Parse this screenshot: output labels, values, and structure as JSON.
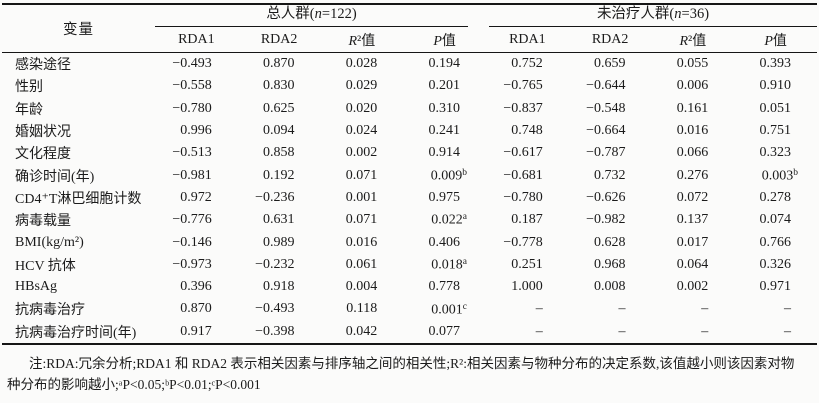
{
  "page": {
    "background": "#fbfbfa",
    "text_color": "#1b1b1b",
    "rule_color": "#161616"
  },
  "table": {
    "variable_header": "变量",
    "groups": [
      {
        "pre": "总人群(",
        "it": "n",
        "post": "=122)",
        "cols": [
          {
            "i": "",
            "t": "RDA1"
          },
          {
            "i": "",
            "t": "RDA2"
          },
          {
            "i": "R",
            "t": "²值"
          },
          {
            "i": "P",
            "t": "值"
          }
        ]
      },
      {
        "pre": "未治疗人群(",
        "it": "n",
        "post": "=36)",
        "cols": [
          {
            "i": "",
            "t": "RDA1"
          },
          {
            "i": "",
            "t": "RDA2"
          },
          {
            "i": "R",
            "t": "²值"
          },
          {
            "i": "P",
            "t": "值"
          }
        ]
      }
    ],
    "rows": [
      {
        "label": "感染途径",
        "cells": [
          "−0.493",
          "0.870",
          "0.028",
          "0.194",
          "0.752",
          "0.659",
          "0.055",
          "0.393"
        ]
      },
      {
        "label": "性别",
        "cells": [
          "−0.558",
          "0.830",
          "0.029",
          "0.201",
          "−0.765",
          "−0.644",
          "0.006",
          "0.910"
        ]
      },
      {
        "label": "年龄",
        "cells": [
          "−0.780",
          "0.625",
          "0.020",
          "0.310",
          "−0.837",
          "−0.548",
          "0.161",
          "0.051"
        ]
      },
      {
        "label": "婚姻状况",
        "cells": [
          "0.996",
          "0.094",
          "0.024",
          "0.241",
          "0.748",
          "−0.664",
          "0.016",
          "0.751"
        ]
      },
      {
        "label": "文化程度",
        "cells": [
          "−0.513",
          "0.858",
          "0.002",
          "0.914",
          "−0.617",
          "−0.787",
          "0.066",
          "0.323"
        ]
      },
      {
        "label": "确诊时间(年)",
        "cells": [
          "−0.981",
          "0.192",
          "0.071",
          "0.009^b",
          "−0.681",
          "0.732",
          "0.276",
          "0.003^b"
        ]
      },
      {
        "label": "CD4⁺T淋巴细胞计数",
        "cells": [
          "0.972",
          "−0.236",
          "0.001",
          "0.975",
          "−0.780",
          "−0.626",
          "0.072",
          "0.278"
        ]
      },
      {
        "label": "病毒载量",
        "cells": [
          "−0.776",
          "0.631",
          "0.071",
          "0.022^a",
          "0.187",
          "−0.982",
          "0.137",
          "0.074"
        ]
      },
      {
        "label": "BMI(kg/m²)",
        "cells": [
          "−0.146",
          "0.989",
          "0.016",
          "0.406",
          "−0.778",
          "0.628",
          "0.017",
          "0.766"
        ]
      },
      {
        "label": "HCV 抗体",
        "cells": [
          "−0.973",
          "−0.232",
          "0.061",
          "0.018^a",
          "0.251",
          "0.968",
          "0.064",
          "0.326"
        ]
      },
      {
        "label": "HBsAg",
        "cells": [
          "0.396",
          "0.918",
          "0.004",
          "0.778",
          "1.000",
          "0.008",
          "0.002",
          "0.971"
        ]
      },
      {
        "label": "抗病毒治疗",
        "cells": [
          "0.870",
          "−0.493",
          "0.118",
          "0.001^c",
          "–",
          "–",
          "–",
          "–"
        ]
      },
      {
        "label": "抗病毒治疗时间(年)",
        "cells": [
          "0.917",
          "−0.398",
          "0.042",
          "0.077",
          "–",
          "–",
          "–",
          "–"
        ]
      }
    ]
  },
  "footnote": {
    "line1": "注:RDA:冗余分析;RDA1 和 RDA2 表示相关因素与排序轴之间的相关性;R²:相关因素与物种分布的决定系数,该值越小则该因素对物",
    "line2": "种分布的影响越小;ᵃP<0.05;ᵇP<0.01;ᶜP<0.001"
  }
}
